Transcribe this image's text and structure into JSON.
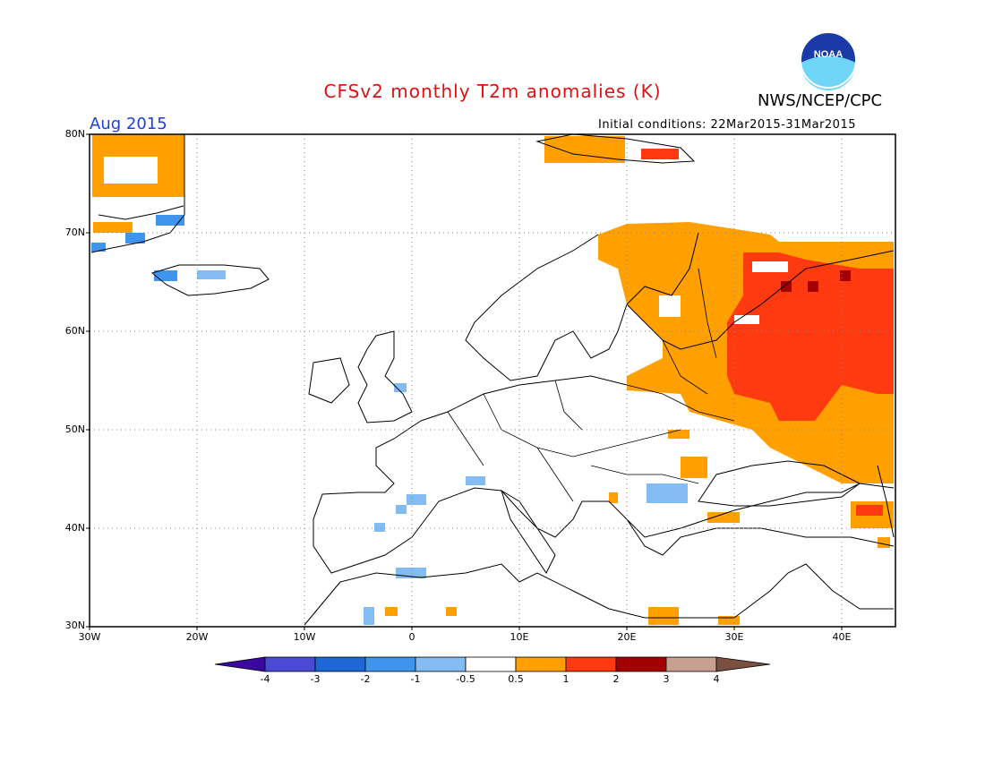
{
  "header": {
    "title": "CFSv2 monthly T2m anomalies (K)",
    "agency": "NWS/NCEP/CPC",
    "logo_text": "NOAA",
    "month": "Aug 2015",
    "initial_conditions": "Initial conditions: 22Mar2015-31Mar2015"
  },
  "map": {
    "lat_labels": [
      "80N",
      "70N",
      "60N",
      "50N",
      "40N",
      "30N"
    ],
    "lon_labels": [
      "30W",
      "20W",
      "10W",
      "0",
      "10E",
      "20E",
      "30E",
      "40E"
    ],
    "grid": "dotted",
    "anomaly_regions_note": ""
  },
  "colorbar": {
    "labels": [
      "-4",
      "-3",
      "-2",
      "-1",
      "-0.5",
      "0.5",
      "1",
      "2",
      "3",
      "4"
    ],
    "colors": [
      "#3a0aa0",
      "#4a4ad6",
      "#1d68d6",
      "#3f95ee",
      "#82bcf2",
      "#ffffff",
      "#ff9f00",
      "#ff3a10",
      "#a40000",
      "#c8a090",
      "#7a5040"
    ]
  },
  "colors": {
    "title": "#e01010",
    "month": "#1f3fd8",
    "pos1": "#ff9f00",
    "pos2": "#ff3a10",
    "pos3": "#a40000",
    "neg1": "#82bcf2",
    "neg2": "#3f95ee",
    "neg3": "#1d68d6"
  }
}
